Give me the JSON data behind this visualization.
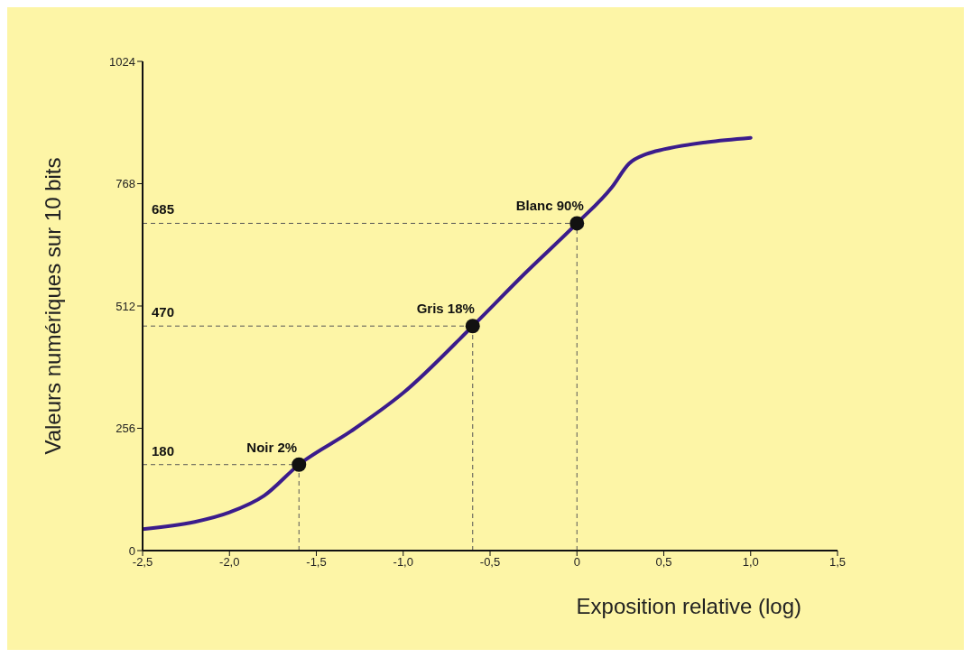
{
  "chart_data": {
    "type": "line",
    "xlabel": "Exposition relative (log)",
    "ylabel": "Valeurs numériques sur 10 bits",
    "xlim": [
      -2.5,
      1.5
    ],
    "xticks": [
      {
        "value": -2.5,
        "label": "-2,5"
      },
      {
        "value": -2,
        "label": "-2,0"
      },
      {
        "value": -1.5,
        "label": "-1,5"
      },
      {
        "value": -1,
        "label": "-1,0"
      },
      {
        "value": -0.5,
        "label": "-0,5"
      },
      0,
      {
        "value": 0.5,
        "label": "0,5"
      },
      {
        "value": 1,
        "label": "1,0"
      },
      {
        "value": 1.5,
        "label": "1,5"
      }
    ],
    "ylim": [
      0,
      1024
    ],
    "yticks": [
      0,
      256,
      512,
      768,
      1024
    ],
    "grid": false,
    "series": [
      {
        "color": "#3b1c8c",
        "marker": "none",
        "x": [
          -2.5,
          -2.2,
          -2.0,
          -1.8,
          -1.6,
          -1.3,
          -1.0,
          -0.6,
          -0.3,
          0,
          0.2,
          0.3,
          0.4,
          0.5,
          0.75,
          1.0
        ],
        "values": [
          45,
          60,
          80,
          115,
          180,
          250,
          330,
          470,
          580,
          685,
          760,
          810,
          830,
          840,
          855,
          864
        ]
      },
      {
        "type": "scatter",
        "color": "#111111",
        "marker": "circle",
        "x": [
          -1.6,
          -0.6,
          0
        ],
        "values": [
          180,
          470,
          685
        ]
      }
    ],
    "ref_lines": [
      {
        "axis": "y",
        "value": 685,
        "label": "685",
        "line_style": "dashed",
        "color": "#555555"
      },
      {
        "axis": "y",
        "value": 470,
        "label": "470",
        "line_style": "dashed",
        "color": "#555555"
      },
      {
        "axis": "y",
        "value": 180,
        "label": "180",
        "line_style": "dashed",
        "color": "#555555"
      },
      {
        "axis": "x",
        "value": -1.6,
        "line_style": "dashed",
        "color": "#555555"
      },
      {
        "axis": "x",
        "value": -0.6,
        "line_style": "dashed",
        "color": "#555555"
      },
      {
        "axis": "x",
        "value": 0,
        "line_style": "dashed",
        "color": "#555555"
      }
    ],
    "annotations": [
      {
        "text": "Noir 2%",
        "x": -1.6,
        "y": 180
      },
      {
        "text": "Gris 18%",
        "x": -0.6,
        "y": 470
      },
      {
        "text": "Blanc 90%",
        "x": 0,
        "y": 685
      }
    ]
  }
}
